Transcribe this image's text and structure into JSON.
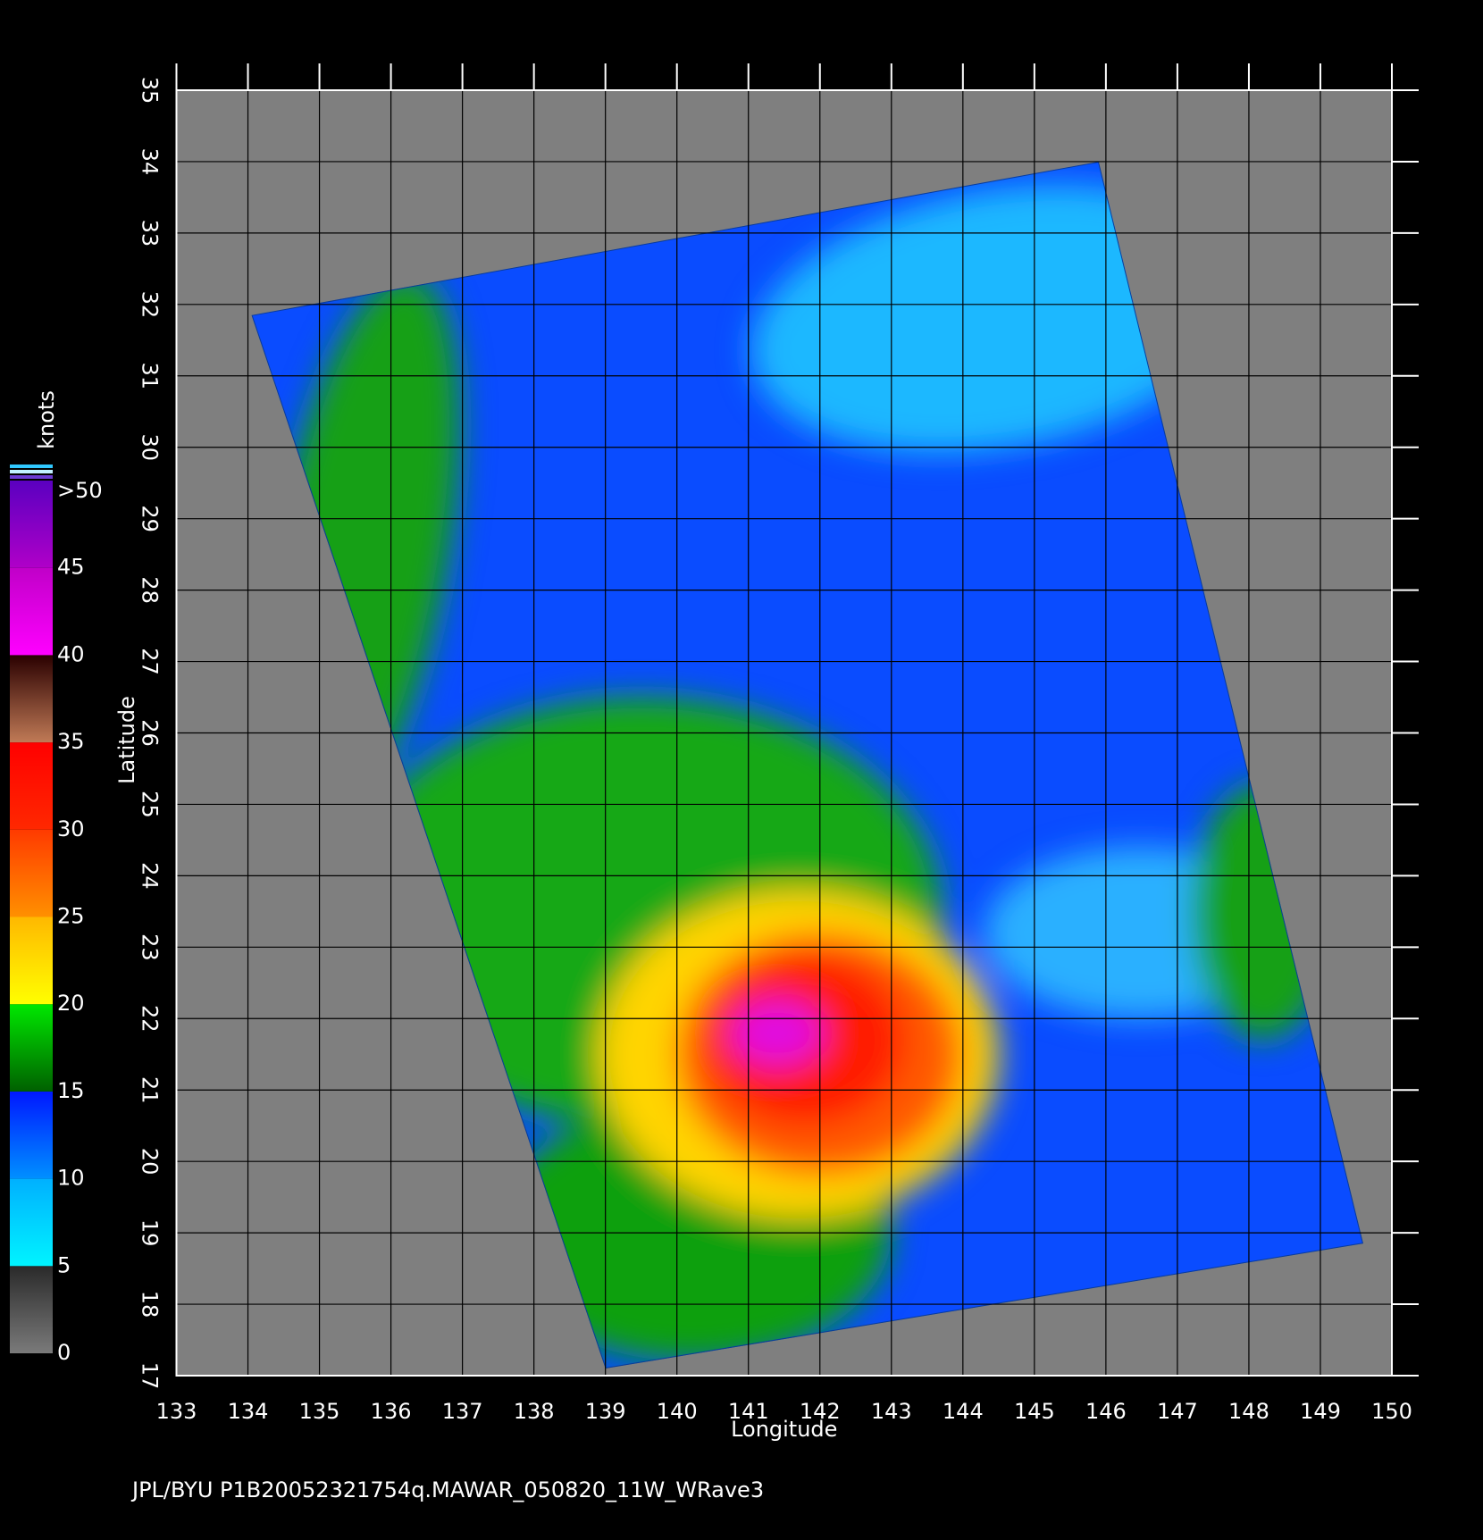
{
  "map": {
    "xlabel": "Longitude",
    "ylabel": "Latitude",
    "xlim": [
      133,
      150
    ],
    "ylim": [
      17,
      35
    ],
    "xticks": [
      133,
      134,
      135,
      136,
      137,
      138,
      139,
      140,
      141,
      142,
      143,
      144,
      145,
      146,
      147,
      148,
      149,
      150
    ],
    "yticks": [
      17,
      18,
      19,
      20,
      21,
      22,
      23,
      24,
      25,
      26,
      27,
      28,
      29,
      30,
      31,
      32,
      33,
      34,
      35
    ],
    "grid": true
  },
  "colorbar": {
    "title": "knots",
    "ticks": [
      0,
      5,
      10,
      15,
      20,
      25,
      30,
      35,
      40,
      45,
      {
        "value": 50,
        "label": ">50"
      }
    ],
    "colors": [
      [
        "#7a7a7a",
        "#2a2a2a"
      ],
      [
        "#00f4ff",
        "#00b0ff"
      ],
      [
        "#0090ff",
        "#0018ff"
      ],
      [
        "#006000",
        "#00e800"
      ],
      [
        "#ffff00",
        "#ffb800"
      ],
      [
        "#ff9000",
        "#ff3a00"
      ],
      [
        "#ff2800",
        "#ff0000"
      ],
      [
        "#c07a56",
        "#2a0000"
      ],
      [
        "#ff00ff",
        "#c000c8"
      ],
      [
        "#b000c8",
        "#5a00c0"
      ]
    ]
  },
  "footer": "JPL/BYU  P1B20052321754q.MAWAR_050820_11W_WRave3"
}
